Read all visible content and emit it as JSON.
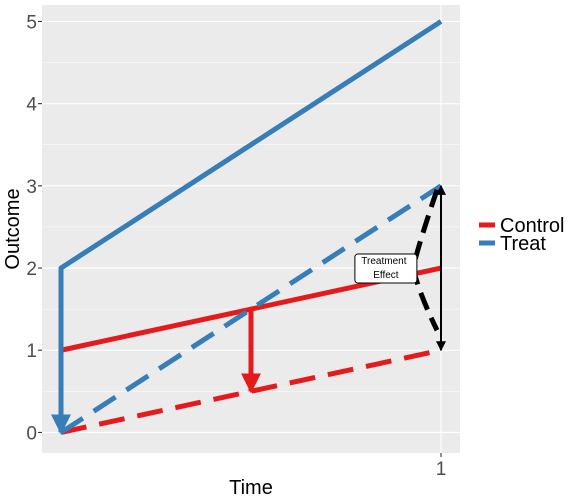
{
  "chart_data": {
    "type": "line",
    "xlabel": "Time",
    "ylabel": "Outcome",
    "x_ticks": [
      {
        "value": 1,
        "label": "1"
      }
    ],
    "y_ticks": [
      {
        "value": 0,
        "label": "0"
      },
      {
        "value": 1,
        "label": "1"
      },
      {
        "value": 2,
        "label": "2"
      },
      {
        "value": 3,
        "label": "3"
      },
      {
        "value": 4,
        "label": "4"
      },
      {
        "value": 5,
        "label": "5"
      }
    ],
    "xlim": [
      -0.05,
      1.05
    ],
    "ylim": [
      -0.25,
      5.2
    ],
    "grid": true,
    "legend_position": "right",
    "colors": {
      "control": "#E41A1C",
      "treat": "#377EB8",
      "annotation": "#000000"
    },
    "legend": [
      {
        "label": "Control",
        "color": "#E41A1C"
      },
      {
        "label": "Treat",
        "color": "#377EB8"
      }
    ],
    "series": [
      {
        "name": "Control",
        "group": "Control",
        "style": "solid",
        "x": [
          0,
          1
        ],
        "y": [
          1,
          2
        ]
      },
      {
        "name": "Control",
        "group": "Control",
        "style": "dashed",
        "x": [
          0,
          1
        ],
        "y": [
          0,
          1
        ]
      },
      {
        "name": "Treat",
        "group": "Treat",
        "style": "solid",
        "x": [
          0,
          0,
          1
        ],
        "y": [
          0,
          2,
          5
        ]
      },
      {
        "name": "Treat",
        "group": "Treat",
        "style": "dashed",
        "x": [
          0,
          1
        ],
        "y": [
          0,
          3
        ]
      }
    ],
    "arrows": [
      {
        "group": "Control",
        "x0": 0.5,
        "y0": 1.5,
        "x1": 0.5,
        "y1": 0.5
      },
      {
        "group": "Treat",
        "x0": 0,
        "y0": 2,
        "x1": 0,
        "y1": 0
      }
    ],
    "annotations": [
      {
        "type": "bracket",
        "x": 1,
        "y0": 1,
        "y1": 3
      },
      {
        "type": "label",
        "text_lines": [
          "Treatment",
          "Effect"
        ],
        "x": 0.855,
        "y": 2
      }
    ]
  }
}
